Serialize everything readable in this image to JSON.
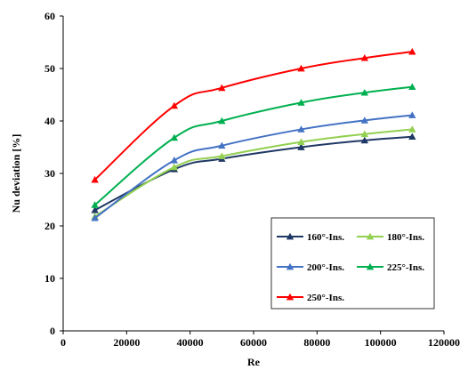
{
  "chart_data": {
    "type": "line",
    "title": "",
    "xlabel": "Re",
    "ylabel": "Nu deviation [%]",
    "xlim": [
      0,
      120000
    ],
    "ylim": [
      0,
      60
    ],
    "xticks": [
      0,
      20000,
      40000,
      60000,
      80000,
      100000,
      120000
    ],
    "yticks": [
      0,
      10,
      20,
      30,
      40,
      50,
      60
    ],
    "x": [
      10000,
      35000,
      50000,
      75000,
      95000,
      110000
    ],
    "grid": false,
    "legend_position": "lower-right",
    "series": [
      {
        "name": "160°-Ins.",
        "color": "#1f3864",
        "values": [
          23.0,
          30.8,
          32.8,
          35.0,
          36.3,
          37.0
        ]
      },
      {
        "name": "180°-Ins.",
        "color": "#92d050",
        "values": [
          21.8,
          31.2,
          33.3,
          36.0,
          37.5,
          38.4
        ]
      },
      {
        "name": "200°-Ins.",
        "color": "#4472c4",
        "values": [
          21.5,
          32.5,
          35.3,
          38.4,
          40.1,
          41.1
        ]
      },
      {
        "name": "225°-Ins.",
        "color": "#00b050",
        "values": [
          24.0,
          36.8,
          40.0,
          43.5,
          45.4,
          46.5
        ]
      },
      {
        "name": "250°-Ins.",
        "color": "#ff0000",
        "values": [
          28.8,
          42.9,
          46.3,
          50.0,
          52.0,
          53.2
        ]
      }
    ]
  }
}
